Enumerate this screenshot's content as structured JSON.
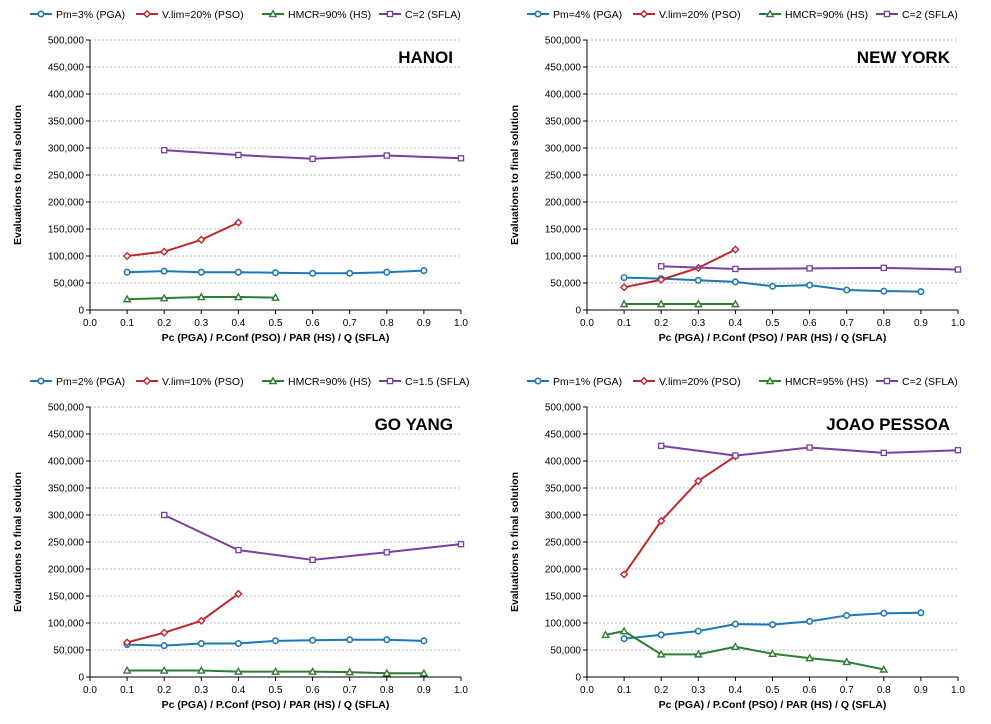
{
  "chart_data": [
    {
      "type": "line",
      "title": "HANOI",
      "xlabel": "Pc (PGA) /  P.Conf (PSO) /  PAR (HS)  /  Q (SFLA)",
      "ylabel": "Evaluations to final solution",
      "xlim": [
        0,
        1
      ],
      "ylim": [
        0,
        500000
      ],
      "x_ticks": [
        "0.0",
        "0.1",
        "0.2",
        "0.3",
        "0.4",
        "0.5",
        "0.6",
        "0.7",
        "0.8",
        "0.9",
        "1.0"
      ],
      "y_ticks": [
        "0",
        "50,000",
        "100,000",
        "150,000",
        "200,000",
        "250,000",
        "300,000",
        "350,000",
        "400,000",
        "450,000",
        "500,000"
      ],
      "grid": true,
      "legend_position": "top",
      "series": [
        {
          "name": "Pm=3% (PGA)",
          "color": "#1f77b4",
          "marker": "circle",
          "x": [
            0.1,
            0.2,
            0.3,
            0.4,
            0.5,
            0.6,
            0.7,
            0.8,
            0.9
          ],
          "y": [
            70000,
            72000,
            70000,
            70000,
            69000,
            68000,
            68000,
            70000,
            73000
          ]
        },
        {
          "name": "V.lim=20% (PSO)",
          "color": "#c0282d",
          "marker": "diamond",
          "x": [
            0.1,
            0.2,
            0.3,
            0.4
          ],
          "y": [
            100000,
            108000,
            130000,
            162000
          ]
        },
        {
          "name": "HMCR=90% (HS)",
          "color": "#2e7d32",
          "marker": "triangle",
          "x": [
            0.1,
            0.2,
            0.3,
            0.4,
            0.5
          ],
          "y": [
            20000,
            22000,
            24000,
            24000,
            23000
          ]
        },
        {
          "name": "C=2 (SFLA)",
          "color": "#7b3fa0",
          "marker": "square",
          "x": [
            0.2,
            0.4,
            0.6,
            0.8,
            1.0
          ],
          "y": [
            296000,
            287000,
            280000,
            286000,
            281000
          ]
        }
      ]
    },
    {
      "type": "line",
      "title": "NEW YORK",
      "xlabel": "Pc (PGA) /  P.Conf (PSO) /  PAR (HS)  /  Q (SFLA)",
      "ylabel": "Evaluations to final solution",
      "xlim": [
        0,
        1
      ],
      "ylim": [
        0,
        500000
      ],
      "x_ticks": [
        "0.0",
        "0.1",
        "0.2",
        "0.3",
        "0.4",
        "0.5",
        "0.6",
        "0.7",
        "0.8",
        "0.9",
        "1.0"
      ],
      "y_ticks": [
        "0",
        "50,000",
        "100,000",
        "150,000",
        "200,000",
        "250,000",
        "300,000",
        "350,000",
        "400,000",
        "450,000",
        "500,000"
      ],
      "grid": true,
      "legend_position": "top",
      "series": [
        {
          "name": "Pm=4% (PGA)",
          "color": "#1f77b4",
          "marker": "circle",
          "x": [
            0.1,
            0.2,
            0.3,
            0.4,
            0.5,
            0.6,
            0.7,
            0.8,
            0.9
          ],
          "y": [
            60000,
            58000,
            55000,
            52000,
            44000,
            46000,
            37000,
            35000,
            34000
          ]
        },
        {
          "name": "V.lim=20% (PSO)",
          "color": "#c0282d",
          "marker": "diamond",
          "x": [
            0.1,
            0.2,
            0.3,
            0.4
          ],
          "y": [
            42000,
            56000,
            78000,
            112000
          ]
        },
        {
          "name": "HMCR=90% (HS)",
          "color": "#2e7d32",
          "marker": "triangle",
          "x": [
            0.1,
            0.2,
            0.3,
            0.4
          ],
          "y": [
            11000,
            11000,
            11000,
            11000
          ]
        },
        {
          "name": "C=2 (SFLA)",
          "color": "#7b3fa0",
          "marker": "square",
          "x": [
            0.2,
            0.4,
            0.6,
            0.8,
            1.0
          ],
          "y": [
            81000,
            76000,
            77000,
            78000,
            75000
          ]
        }
      ]
    },
    {
      "type": "line",
      "title": "GO YANG",
      "xlabel": "Pc (PGA) /  P.Conf (PSO) /  PAR (HS)  /  Q (SFLA)",
      "ylabel": "Evaluations to final solution",
      "xlim": [
        0,
        1
      ],
      "ylim": [
        0,
        500000
      ],
      "x_ticks": [
        "0.0",
        "0.1",
        "0.2",
        "0.3",
        "0.4",
        "0.5",
        "0.6",
        "0.7",
        "0.8",
        "0.9",
        "1.0"
      ],
      "y_ticks": [
        "0",
        "50,000",
        "100,000",
        "150,000",
        "200,000",
        "250,000",
        "300,000",
        "350,000",
        "400,000",
        "450,000",
        "500,000"
      ],
      "grid": true,
      "legend_position": "top",
      "series": [
        {
          "name": "Pm=2% (PGA)",
          "color": "#1f77b4",
          "marker": "circle",
          "x": [
            0.1,
            0.2,
            0.3,
            0.4,
            0.5,
            0.6,
            0.7,
            0.8,
            0.9
          ],
          "y": [
            60000,
            58000,
            62000,
            62000,
            67000,
            68000,
            69000,
            69000,
            67000
          ]
        },
        {
          "name": "V.lim=10% (PSO)",
          "color": "#c0282d",
          "marker": "diamond",
          "x": [
            0.1,
            0.2,
            0.3,
            0.4
          ],
          "y": [
            64000,
            82000,
            104000,
            154000
          ]
        },
        {
          "name": "HMCR=90% (HS)",
          "color": "#2e7d32",
          "marker": "triangle",
          "x": [
            0.1,
            0.2,
            0.3,
            0.4,
            0.5,
            0.6,
            0.7,
            0.8,
            0.9
          ],
          "y": [
            12000,
            12000,
            12000,
            10000,
            10000,
            10000,
            9000,
            7000,
            7000
          ]
        },
        {
          "name": "C=1.5 (SFLA)",
          "color": "#7b3fa0",
          "marker": "square",
          "x": [
            0.2,
            0.4,
            0.6,
            0.8,
            1.0
          ],
          "y": [
            300000,
            235000,
            217000,
            231000,
            246000
          ]
        }
      ]
    },
    {
      "type": "line",
      "title": "JOAO PESSOA",
      "xlabel": "Pc (PGA) /  P.Conf (PSO) /  PAR (HS)  /  Q (SFLA)",
      "ylabel": "Evaluations to final solution",
      "xlim": [
        0,
        1
      ],
      "ylim": [
        0,
        500000
      ],
      "x_ticks": [
        "0.0",
        "0.1",
        "0.2",
        "0.3",
        "0.4",
        "0.5",
        "0.6",
        "0.7",
        "0.8",
        "0.9",
        "1.0"
      ],
      "y_ticks": [
        "0",
        "50,000",
        "100,000",
        "150,000",
        "200,000",
        "250,000",
        "300,000",
        "350,000",
        "400,000",
        "450,000",
        "500,000"
      ],
      "grid": true,
      "legend_position": "top",
      "series": [
        {
          "name": "Pm=1% (PGA)",
          "color": "#1f77b4",
          "marker": "circle",
          "x": [
            0.1,
            0.2,
            0.3,
            0.4,
            0.5,
            0.6,
            0.7,
            0.8,
            0.9
          ],
          "y": [
            71000,
            78000,
            85000,
            98000,
            97000,
            103000,
            114000,
            118000,
            119000
          ]
        },
        {
          "name": "V.lim=20% (PSO)",
          "color": "#c0282d",
          "marker": "diamond",
          "x": [
            0.1,
            0.2,
            0.3,
            0.4
          ],
          "y": [
            190000,
            289000,
            363000,
            409000
          ]
        },
        {
          "name": "HMCR=95% (HS)",
          "color": "#2e7d32",
          "marker": "triangle",
          "x": [
            0.05,
            0.1,
            0.2,
            0.3,
            0.4,
            0.5,
            0.6,
            0.7,
            0.8
          ],
          "y": [
            78000,
            85000,
            42000,
            42000,
            56000,
            43000,
            35000,
            28000,
            14000
          ]
        },
        {
          "name": "C=2 (SFLA)",
          "color": "#7b3fa0",
          "marker": "square",
          "x": [
            0.2,
            0.4,
            0.6,
            0.8,
            1.0
          ],
          "y": [
            428000,
            410000,
            425000,
            415000,
            420000
          ]
        }
      ]
    }
  ]
}
